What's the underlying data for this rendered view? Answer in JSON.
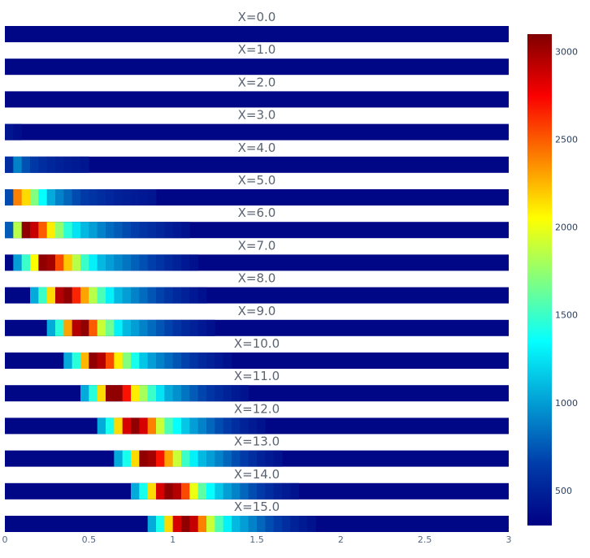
{
  "chart_data": {
    "type": "heatmap",
    "panel_titles": [
      "X=0.0",
      "X=1.0",
      "X=2.0",
      "X=3.0",
      "X=4.0",
      "X=5.0",
      "X=6.0",
      "X=7.0",
      "X=8.0",
      "X=9.0",
      "X=10.0",
      "X=11.0",
      "X=12.0",
      "X=13.0",
      "X=14.0",
      "X=15.0"
    ],
    "x_axis": {
      "range": [
        0,
        3
      ],
      "tick_values": [
        0,
        0.5,
        1,
        1.5,
        2,
        2.5,
        3
      ],
      "tick_labels": [
        "0",
        "0.5",
        "1",
        "1.5",
        "2",
        "2.5",
        "3"
      ],
      "cell_width": 0.05
    },
    "colorscale": "Jet",
    "colorbar": {
      "range": [
        300,
        3100
      ],
      "tick_values": [
        500,
        1000,
        1500,
        2000,
        2500,
        3000
      ],
      "tick_labels": [
        "500",
        "1000",
        "1500",
        "2000",
        "2500",
        "3000"
      ]
    },
    "background_value": 340,
    "rows": [
      {
        "peak": 3000,
        "start": 0,
        "profile": []
      },
      {
        "peak": 3000,
        "start": 0,
        "profile": []
      },
      {
        "peak": 3000,
        "start": 0,
        "profile": []
      },
      {
        "peak": 3000,
        "start": 0,
        "profile": [
          420,
          380
        ]
      },
      {
        "peak": 3000,
        "start": 0,
        "profile": [
          560,
          900,
          720,
          620,
          560,
          520,
          490,
          470,
          450,
          430
        ]
      },
      {
        "peak": 3000,
        "start": 0,
        "profile": [
          700,
          2400,
          2150,
          1700,
          1350,
          1050,
          900,
          800,
          700,
          640,
          600,
          560,
          530,
          500,
          480,
          460,
          440,
          420
        ]
      },
      {
        "peak": 3000,
        "start": 0,
        "profile": [
          760,
          1850,
          3050,
          2900,
          2500,
          2100,
          1750,
          1450,
          1250,
          1100,
          1000,
          900,
          820,
          760,
          700,
          650,
          600,
          560,
          520,
          480,
          440,
          410
        ]
      },
      {
        "peak": 3000,
        "start": 0.05,
        "profile": [
          1000,
          1500,
          2050,
          3050,
          3000,
          2550,
          2200,
          1850,
          1500,
          1300,
          1100,
          1000,
          920,
          850,
          780,
          720,
          660,
          600,
          540,
          490,
          440,
          400
        ]
      },
      {
        "peak": 3000,
        "start": 0.15,
        "profile": [
          1050,
          1500,
          2150,
          2950,
          3050,
          2650,
          2300,
          1850,
          1550,
          1300,
          1100,
          1000,
          900,
          820,
          740,
          670,
          600,
          540,
          490,
          440,
          400
        ]
      },
      {
        "peak": 3000,
        "start": 0.25,
        "profile": [
          1050,
          1450,
          2300,
          2950,
          3050,
          2500,
          1900,
          1650,
          1300,
          1100,
          1000,
          900,
          820,
          740,
          670,
          600,
          540,
          490,
          440,
          400
        ]
      },
      {
        "peak": 3000,
        "start": 0.35,
        "profile": [
          1050,
          1450,
          2250,
          3050,
          2950,
          2550,
          2100,
          1700,
          1400,
          1150,
          1000,
          900,
          820,
          740,
          670,
          600,
          540,
          490,
          440,
          400
        ]
      },
      {
        "peak": 3000,
        "start": 0.45,
        "profile": [
          1050,
          1450,
          2150,
          3050,
          3050,
          2700,
          2100,
          1800,
          1500,
          1250,
          1050,
          950,
          850,
          760,
          680,
          610,
          550,
          500,
          450,
          410
        ]
      },
      {
        "peak": 3000,
        "start": 0.55,
        "profile": [
          1050,
          1400,
          2150,
          2850,
          3050,
          2850,
          2400,
          1900,
          1550,
          1350,
          1150,
          1000,
          900,
          800,
          710,
          630,
          560,
          500,
          450,
          410
        ]
      },
      {
        "peak": 3000,
        "start": 0.65,
        "profile": [
          1050,
          1400,
          2150,
          3050,
          3000,
          2700,
          2300,
          1900,
          1500,
          1300,
          1100,
          1000,
          900,
          800,
          710,
          630,
          560,
          500,
          450,
          410
        ]
      },
      {
        "peak": 3000,
        "start": 0.75,
        "profile": [
          1050,
          1400,
          2150,
          2850,
          3050,
          2950,
          2550,
          2000,
          1600,
          1350,
          1150,
          1000,
          900,
          800,
          710,
          630,
          560,
          500,
          450,
          410
        ]
      },
      {
        "peak": 3000,
        "start": 0.85,
        "profile": [
          1050,
          1400,
          2150,
          2850,
          3050,
          2900,
          2400,
          1900,
          1550,
          1300,
          1100,
          1000,
          900,
          800,
          710,
          630,
          560,
          500,
          450,
          410
        ]
      }
    ]
  }
}
